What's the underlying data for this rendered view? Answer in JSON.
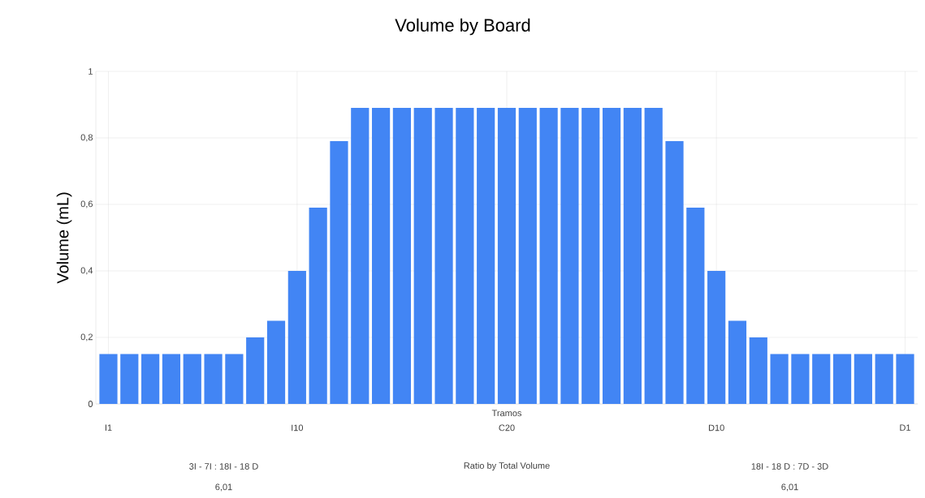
{
  "chart_data": {
    "type": "bar",
    "title": "Volume by Board",
    "xlabel": "Tramos",
    "ylabel": "Volume (mL)",
    "categories": [
      "I1",
      null,
      null,
      null,
      null,
      null,
      null,
      null,
      null,
      "I10",
      null,
      null,
      null,
      null,
      null,
      null,
      null,
      null,
      null,
      "C20",
      null,
      null,
      null,
      null,
      null,
      null,
      null,
      null,
      null,
      "D10",
      null,
      null,
      null,
      null,
      null,
      null,
      null,
      null,
      "D1"
    ],
    "values": [
      0.15,
      0.15,
      0.15,
      0.15,
      0.15,
      0.15,
      0.15,
      0.2,
      0.25,
      0.4,
      0.59,
      0.79,
      0.89,
      0.89,
      0.89,
      0.89,
      0.89,
      0.89,
      0.89,
      0.89,
      0.89,
      0.89,
      0.89,
      0.89,
      0.89,
      0.89,
      0.89,
      0.79,
      0.59,
      0.4,
      0.25,
      0.2,
      0.15,
      0.15,
      0.15,
      0.15,
      0.15,
      0.15,
      0.15
    ],
    "color": "#4285f4",
    "ylim": [
      0,
      1
    ],
    "yticks": [
      0,
      {
        "value": 0.2,
        "label": "0,2"
      },
      {
        "value": 0.4,
        "label": "0,4"
      },
      {
        "value": 0.6,
        "label": "0,6"
      },
      {
        "value": 0.8,
        "label": "0,8"
      },
      1
    ],
    "grid": true,
    "annotations": [
      "3I - 7I : 18I - 18 D",
      "6,01",
      "Ratio by Total Volume",
      "18I - 18 D : 7D - 3D",
      "6,01"
    ]
  }
}
